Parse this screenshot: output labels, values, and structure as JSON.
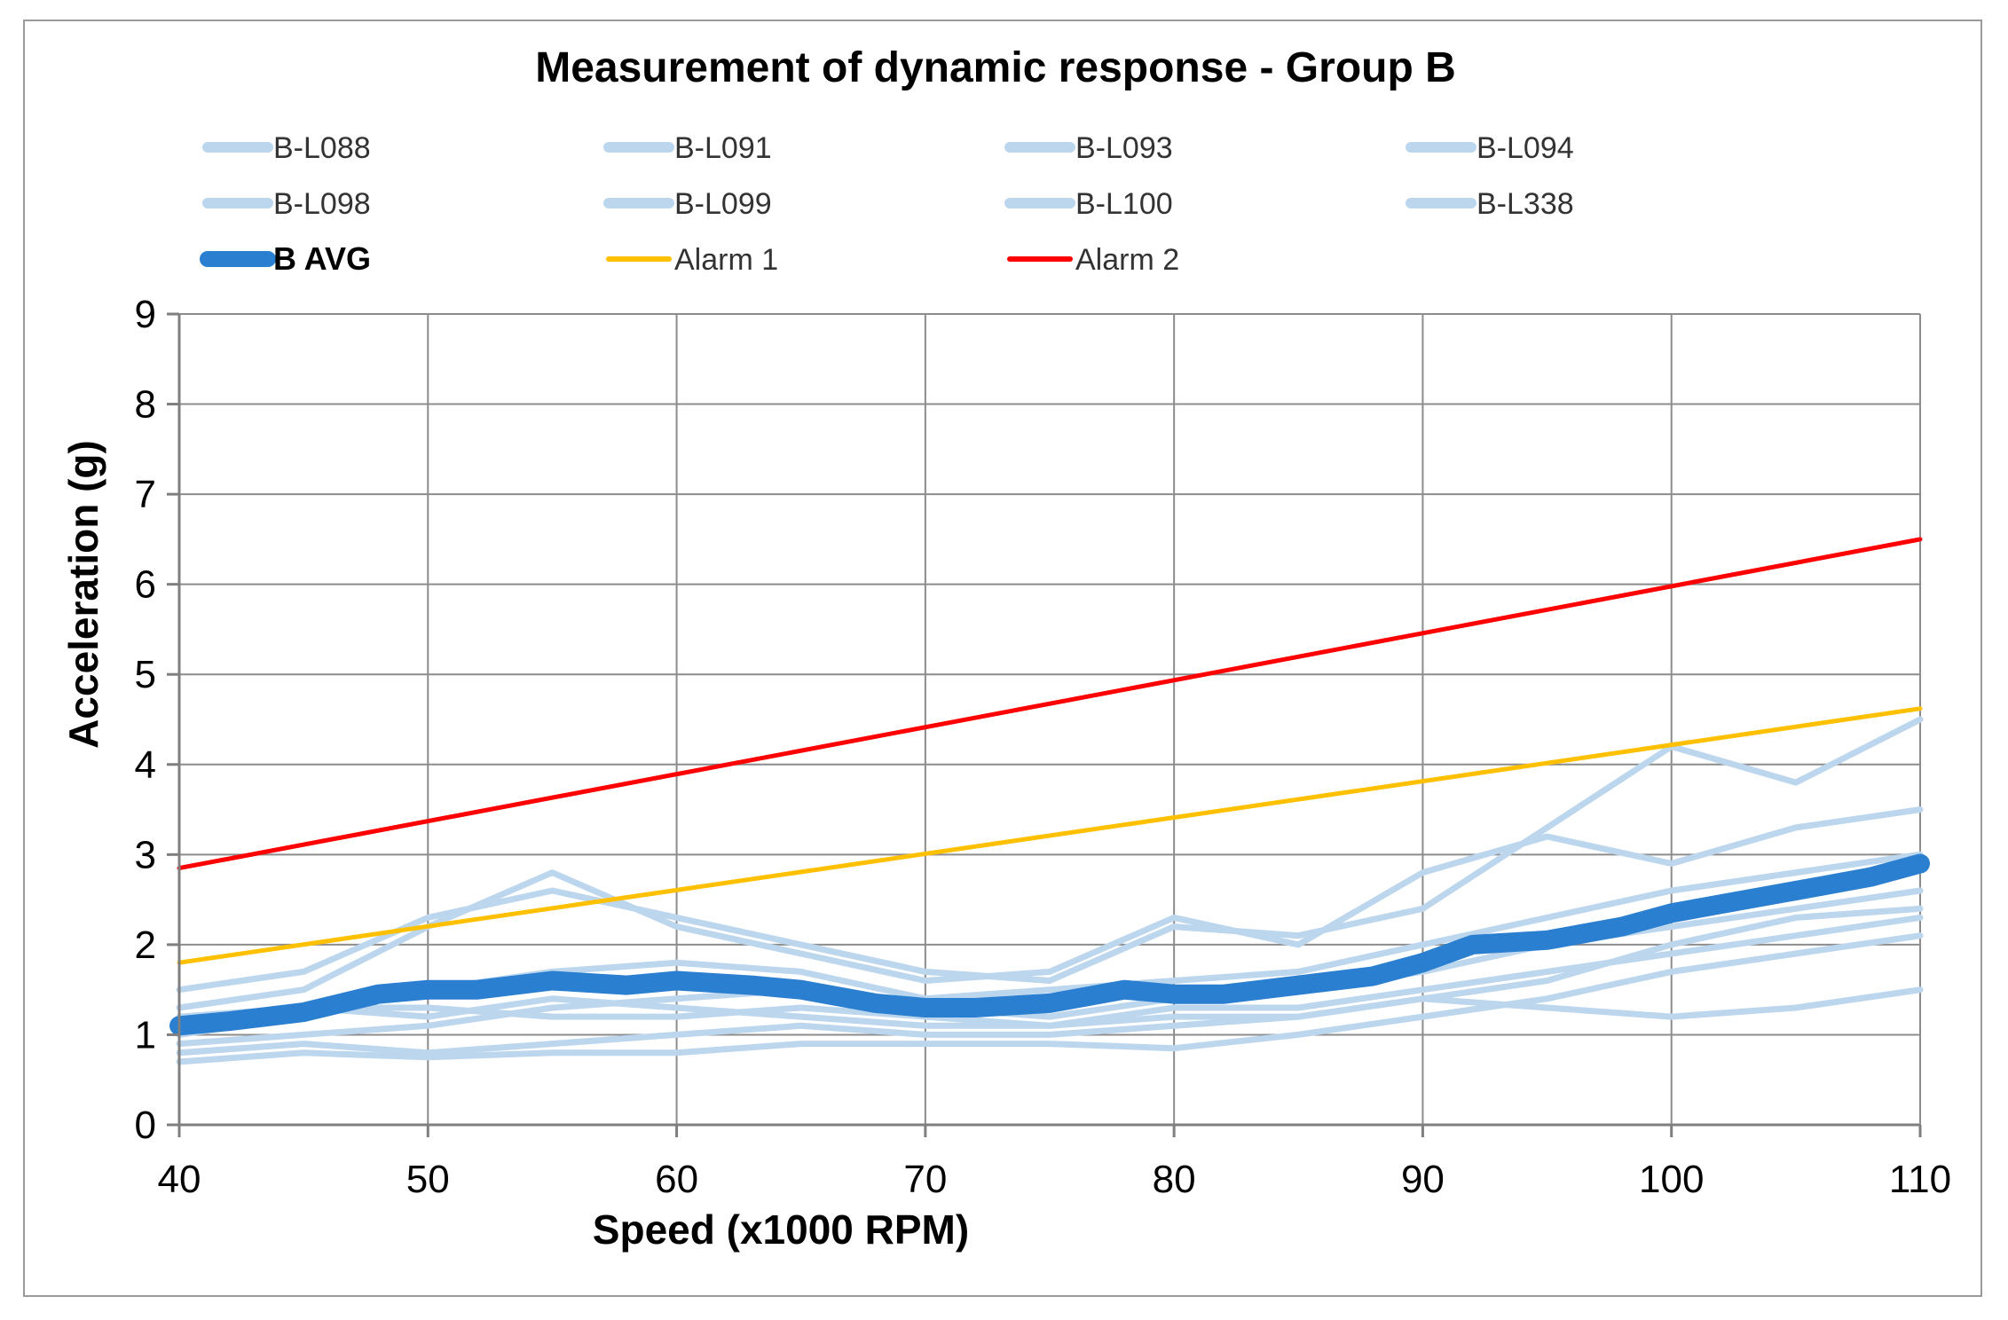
{
  "chart_data": {
    "type": "line",
    "title": "Measurement of dynamic response - Group B",
    "xlabel": "Speed (x1000 RPM)",
    "ylabel": "Acceleration (g)",
    "xlim": [
      40,
      110
    ],
    "ylim": [
      0,
      9
    ],
    "x_ticks": [
      "40",
      "50",
      "60",
      "70",
      "80",
      "90",
      "100",
      "110"
    ],
    "y_ticks": [
      "0",
      "1",
      "2",
      "3",
      "4",
      "5",
      "6",
      "7",
      "8",
      "9"
    ],
    "grid": true,
    "legend_position": "top",
    "series": [
      {
        "name": "B-L088",
        "color": "#bcd6ee",
        "width": "thin",
        "x": [
          40,
          45,
          50,
          55,
          60,
          65,
          70,
          75,
          80,
          85,
          90,
          95,
          100,
          105,
          110
        ],
        "y": [
          1.5,
          1.7,
          2.3,
          2.6,
          2.3,
          2.0,
          1.7,
          1.6,
          2.2,
          2.1,
          2.4,
          3.3,
          4.2,
          3.8,
          4.5
        ]
      },
      {
        "name": "B-L091",
        "color": "#bcd6ee",
        "width": "thin",
        "x": [
          40,
          45,
          50,
          55,
          60,
          65,
          70,
          75,
          80,
          85,
          90,
          95,
          100,
          105,
          110
        ],
        "y": [
          1.3,
          1.5,
          2.2,
          2.8,
          2.2,
          1.9,
          1.6,
          1.7,
          2.3,
          2.0,
          2.8,
          3.2,
          2.9,
          3.3,
          3.5
        ]
      },
      {
        "name": "B-L093",
        "color": "#bcd6ee",
        "width": "thin",
        "x": [
          40,
          45,
          50,
          55,
          60,
          65,
          70,
          75,
          80,
          85,
          90,
          95,
          100,
          105,
          110
        ],
        "y": [
          1.0,
          1.2,
          1.5,
          1.7,
          1.8,
          1.7,
          1.4,
          1.5,
          1.6,
          1.7,
          2.0,
          2.3,
          2.6,
          2.8,
          3.0
        ]
      },
      {
        "name": "B-L094",
        "color": "#bcd6ee",
        "width": "thin",
        "x": [
          40,
          45,
          50,
          55,
          60,
          65,
          70,
          75,
          80,
          85,
          90,
          95,
          100,
          105,
          110
        ],
        "y": [
          0.9,
          1.0,
          1.1,
          1.3,
          1.4,
          1.5,
          1.3,
          1.2,
          1.4,
          1.5,
          1.7,
          2.0,
          2.2,
          2.4,
          2.6
        ]
      },
      {
        "name": "B-L098",
        "color": "#bcd6ee",
        "width": "thin",
        "x": [
          40,
          45,
          50,
          55,
          60,
          65,
          70,
          75,
          80,
          85,
          90,
          95,
          100,
          105,
          110
        ],
        "y": [
          0.8,
          0.9,
          0.8,
          0.9,
          1.0,
          1.1,
          1.0,
          1.0,
          1.1,
          1.2,
          1.4,
          1.6,
          2.0,
          2.3,
          2.4
        ]
      },
      {
        "name": "B-L099",
        "color": "#bcd6ee",
        "width": "thin",
        "x": [
          40,
          45,
          50,
          55,
          60,
          65,
          70,
          75,
          80,
          85,
          90,
          95,
          100,
          105,
          110
        ],
        "y": [
          0.7,
          0.8,
          0.75,
          0.8,
          0.8,
          0.9,
          0.9,
          0.9,
          0.85,
          1.0,
          1.2,
          1.4,
          1.7,
          1.9,
          2.1
        ]
      },
      {
        "name": "B-L100",
        "color": "#bcd6ee",
        "width": "thin",
        "x": [
          40,
          45,
          50,
          55,
          60,
          65,
          70,
          75,
          80,
          85,
          90,
          95,
          100,
          105,
          110
        ],
        "y": [
          1.1,
          1.3,
          1.2,
          1.4,
          1.3,
          1.2,
          1.1,
          1.1,
          1.3,
          1.3,
          1.5,
          1.7,
          1.9,
          2.1,
          2.3
        ]
      },
      {
        "name": "B-L338",
        "color": "#bcd6ee",
        "width": "thin",
        "x": [
          40,
          45,
          50,
          55,
          60,
          65,
          70,
          75,
          80,
          85,
          90,
          95,
          100,
          105,
          110
        ],
        "y": [
          1.2,
          1.3,
          1.3,
          1.2,
          1.2,
          1.3,
          1.2,
          1.1,
          1.2,
          1.2,
          1.4,
          1.3,
          1.2,
          1.3,
          1.5
        ]
      },
      {
        "name": "B AVG",
        "color": "#2b7fd0",
        "width": "thick",
        "x": [
          40,
          42,
          45,
          48,
          50,
          52,
          55,
          58,
          60,
          63,
          65,
          68,
          70,
          72,
          75,
          78,
          80,
          82,
          85,
          88,
          90,
          92,
          95,
          98,
          100,
          103,
          105,
          108,
          110
        ],
        "y": [
          1.1,
          1.15,
          1.25,
          1.45,
          1.5,
          1.5,
          1.6,
          1.55,
          1.6,
          1.55,
          1.5,
          1.35,
          1.3,
          1.3,
          1.35,
          1.5,
          1.45,
          1.45,
          1.55,
          1.65,
          1.8,
          2.0,
          2.05,
          2.2,
          2.35,
          2.5,
          2.6,
          2.75,
          2.9
        ]
      },
      {
        "name": "Alarm 1",
        "color": "#ffc000",
        "width": "medium",
        "x": [
          40,
          110
        ],
        "y": [
          1.8,
          4.62
        ]
      },
      {
        "name": "Alarm 2",
        "color": "#ff0000",
        "width": "medium",
        "x": [
          40,
          110
        ],
        "y": [
          2.85,
          6.5
        ]
      }
    ]
  }
}
